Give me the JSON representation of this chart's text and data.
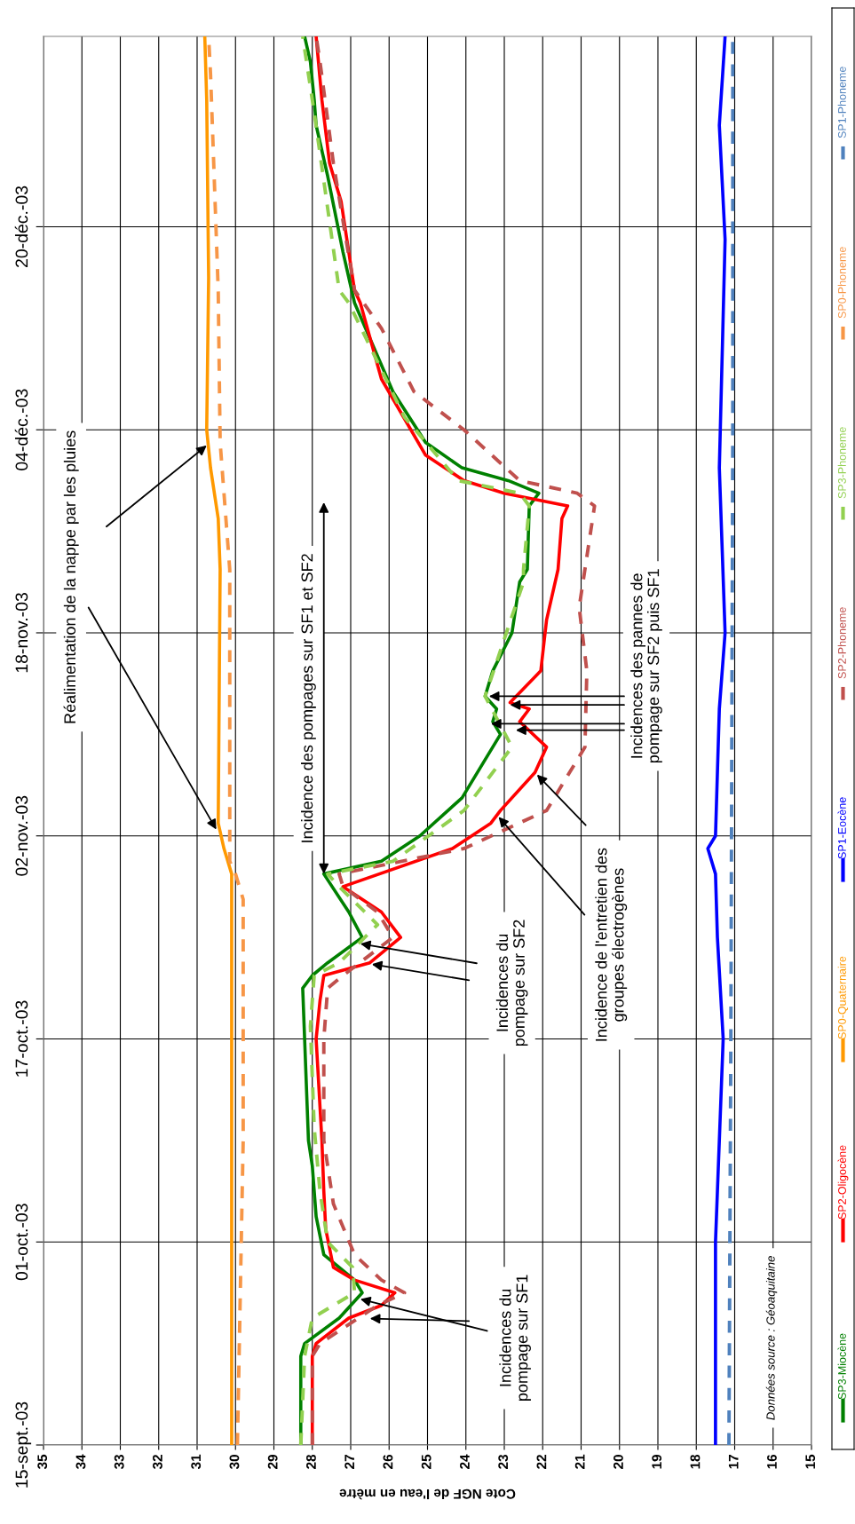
{
  "chart_data": {
    "type": "line",
    "orientation": "horizontal",
    "xlabel": "Cote NGF de l'eau en mètre",
    "ylim": [
      "2003-09-15",
      "2004-01-04"
    ],
    "yticks": [
      {
        "value": "2003-09-15",
        "label": "15-sept.-03"
      },
      {
        "value": "2003-10-01",
        "label": "01-oct.-03"
      },
      {
        "value": "2003-10-17",
        "label": "17-oct.-03"
      },
      {
        "value": "2003-11-02",
        "label": "02-nov.-03"
      },
      {
        "value": "2003-11-18",
        "label": "18-nov.-03"
      },
      {
        "value": "2003-12-04",
        "label": "04-déc.-03"
      },
      {
        "value": "2003-12-20",
        "label": "20-déc.-03"
      }
    ],
    "xlim": [
      35,
      15
    ],
    "xticks": [
      15,
      16,
      17,
      18,
      19,
      20,
      21,
      22,
      23,
      24,
      25,
      26,
      27,
      28,
      29,
      30,
      31,
      32,
      33,
      34,
      35
    ],
    "grid": true,
    "legend": "right",
    "series": [
      {
        "name": "SP3-Miocène",
        "color": "#008000",
        "line_style": "solid",
        "x": [
          "2003-09-15",
          "2003-09-22",
          "2003-09-23",
          "2003-09-25",
          "2003-09-27",
          "2003-09-28",
          "2003-09-29",
          "2003-09-30",
          "2003-10-03",
          "2003-10-07",
          "2003-10-09",
          "2003-10-17",
          "2003-10-21",
          "2003-10-22",
          "2003-10-23",
          "2003-10-25",
          "2003-10-27",
          "2003-10-30",
          "2003-10-31",
          "2003-11-02",
          "2003-11-05",
          "2003-11-09",
          "2003-11-10",
          "2003-11-11",
          "2003-11-12",
          "2003-11-13",
          "2003-11-15",
          "2003-11-18",
          "2003-11-22",
          "2003-11-23",
          "2003-11-28",
          "2003-11-29",
          "2003-11-30",
          "2003-12-01",
          "2003-12-03",
          "2003-12-07",
          "2003-12-14",
          "2003-12-18",
          "2003-12-24",
          "2003-12-28",
          "2003-12-30",
          "2004-01-02",
          "2004-01-04"
        ],
        "values": [
          28.3,
          28.3,
          28.2,
          27.3,
          26.7,
          26.9,
          27.3,
          27.7,
          27.9,
          28.0,
          28.1,
          28.2,
          28.25,
          28.0,
          27.6,
          26.7,
          27.05,
          27.7,
          26.2,
          25.2,
          24.1,
          23.3,
          23.1,
          23.3,
          23.2,
          23.5,
          23.3,
          22.8,
          22.6,
          22.4,
          22.35,
          22.1,
          22.9,
          24.1,
          25.05,
          25.9,
          26.9,
          27.2,
          27.6,
          27.9,
          27.95,
          28.05,
          28.2
        ]
      },
      {
        "name": "SP2-Oligocène",
        "color": "#ff0000",
        "line_style": "solid",
        "x": [
          "2003-09-15",
          "2003-09-22",
          "2003-09-23",
          "2003-09-25",
          "2003-09-26",
          "2003-09-27",
          "2003-09-28",
          "2003-09-29",
          "2003-10-02",
          "2003-10-05",
          "2003-10-09",
          "2003-10-17",
          "2003-10-20",
          "2003-10-22",
          "2003-10-23",
          "2003-10-25",
          "2003-10-27",
          "2003-10-29",
          "2003-11-01",
          "2003-11-03",
          "2003-11-04",
          "2003-11-07",
          "2003-11-09",
          "2003-11-11",
          "2003-11-12",
          "2003-11-12T12:00",
          "2003-11-15",
          "2003-11-19",
          "2003-11-23",
          "2003-11-27",
          "2003-11-28",
          "2003-11-29",
          "2003-11-30",
          "2003-12-02",
          "2003-12-08",
          "2003-12-14",
          "2003-12-15",
          "2003-12-22",
          "2003-12-25",
          "2003-12-30",
          "2004-01-04"
        ],
        "values": [
          28.0,
          28.0,
          27.9,
          27.05,
          26.2,
          25.85,
          26.9,
          27.45,
          27.65,
          27.7,
          27.75,
          27.9,
          27.8,
          27.7,
          26.5,
          25.7,
          26.2,
          27.2,
          24.35,
          23.35,
          23.1,
          22.2,
          21.9,
          22.6,
          22.35,
          22.85,
          22.05,
          21.9,
          21.6,
          21.5,
          21.35,
          23.0,
          24.05,
          25.05,
          26.2,
          26.75,
          26.9,
          27.25,
          27.55,
          27.75,
          27.9
        ]
      },
      {
        "name": "SP0-Quaternaire",
        "color": "#ff9900",
        "line_style": "solid",
        "x": [
          "2003-09-15",
          "2003-10-30",
          "2003-11-01",
          "2003-11-03",
          "2003-11-23",
          "2003-11-27",
          "2003-12-01",
          "2003-12-04",
          "2003-12-16",
          "2003-12-30",
          "2004-01-04"
        ],
        "values": [
          30.1,
          30.1,
          30.3,
          30.45,
          30.4,
          30.45,
          30.65,
          30.75,
          30.7,
          30.75,
          30.8
        ]
      },
      {
        "name": "SP1-Eocène",
        "color": "#0000ff",
        "line_style": "solid",
        "x": [
          "2003-09-15",
          "2003-10-01",
          "2003-10-17",
          "2003-10-25",
          "2003-10-30",
          "2003-11-01",
          "2003-11-02",
          "2003-11-12",
          "2003-11-18",
          "2003-12-01",
          "2003-12-19",
          "2003-12-28",
          "2004-01-04"
        ],
        "values": [
          17.5,
          17.5,
          17.3,
          17.45,
          17.5,
          17.7,
          17.5,
          17.4,
          17.25,
          17.4,
          17.25,
          17.4,
          17.25
        ]
      },
      {
        "name": "SP2-Phoneme",
        "color": "#c0504d",
        "line_style": "dashed",
        "x": [
          "2003-09-15",
          "2003-09-22",
          "2003-09-23",
          "2003-09-26",
          "2003-09-27",
          "2003-09-28",
          "2003-09-30",
          "2003-10-04",
          "2003-10-09",
          "2003-10-17",
          "2003-10-21",
          "2003-10-22",
          "2003-10-25",
          "2003-10-27",
          "2003-10-29",
          "2003-10-30",
          "2003-11-01",
          "2003-11-04",
          "2003-11-09",
          "2003-11-15",
          "2003-11-20",
          "2003-11-28",
          "2003-11-29",
          "2003-11-30",
          "2003-12-04",
          "2003-12-07",
          "2003-12-12",
          "2003-12-15",
          "2003-12-25",
          "2004-01-02",
          "2004-01-04"
        ],
        "values": [
          28.0,
          28.0,
          27.8,
          26.3,
          25.6,
          26.2,
          26.9,
          27.45,
          27.7,
          27.7,
          27.6,
          27.2,
          25.9,
          26.3,
          27.2,
          27.3,
          24.05,
          21.9,
          20.9,
          20.85,
          21.05,
          20.65,
          21.1,
          22.6,
          24.05,
          25.35,
          26.2,
          26.9,
          27.45,
          27.8,
          27.9
        ]
      },
      {
        "name": "SP3-Phoneme",
        "color": "#92d050",
        "line_style": "dashed",
        "x": [
          "2003-09-15",
          "2003-09-22",
          "2003-09-25",
          "2003-09-27",
          "2003-09-29",
          "2003-10-01",
          "2003-10-05",
          "2003-10-10",
          "2003-10-18",
          "2003-10-22",
          "2003-10-23",
          "2003-10-26",
          "2003-10-29",
          "2003-10-30",
          "2003-10-31",
          "2003-11-04",
          "2003-11-09",
          "2003-11-13",
          "2003-11-22",
          "2003-11-23",
          "2003-11-28",
          "2003-11-29",
          "2003-11-30",
          "2003-12-05",
          "2003-12-14",
          "2003-12-15",
          "2003-12-29",
          "2004-01-04"
        ],
        "values": [
          28.3,
          28.2,
          28.0,
          26.9,
          26.95,
          27.6,
          27.8,
          27.95,
          28.05,
          27.95,
          27.3,
          26.3,
          27.3,
          27.6,
          25.9,
          24.05,
          22.8,
          23.5,
          22.5,
          22.5,
          22.35,
          22.6,
          24.2,
          25.6,
          27.05,
          27.3,
          27.95,
          28.25
        ]
      },
      {
        "name": "SP0-Phoneme",
        "color": "#f79646",
        "line_style": "dashed",
        "x": [
          "2003-09-15",
          "2003-10-09",
          "2003-10-28",
          "2003-10-30",
          "2003-10-31",
          "2003-11-23",
          "2003-12-03",
          "2003-12-15",
          "2004-01-01",
          "2004-01-04"
        ],
        "values": [
          29.95,
          29.8,
          29.8,
          30.0,
          30.15,
          30.15,
          30.4,
          30.45,
          30.65,
          30.7
        ]
      },
      {
        "name": "SP1-Phoneme",
        "color": "#4f81bd",
        "line_style": "dashed",
        "x": [
          "2003-09-15",
          "2003-10-17",
          "2003-12-04",
          "2004-01-04"
        ],
        "values": [
          17.15,
          17.1,
          17.05,
          17.05
        ]
      }
    ],
    "annotations": [
      {
        "text": "Réalimentation de la nappe par les pluies",
        "y": "2003-11-02T12:00",
        "x": 30.5
      },
      {
        "text": "Incidence des pompages sur SF1 et SF2",
        "y": "2003-10-30",
        "x": 27.7
      },
      {
        "text": "Incidences du\npompage sur SF2",
        "y": "2003-10-24T12:00",
        "x": 26.75
      },
      {
        "text": "Incidence de l'entretien des\ngroupes électrogènes",
        "y": "2003-11-03T12:00",
        "x": 23.15
      },
      {
        "text": "Incidences des pannes de\npompage sur SF2 puis SF1",
        "y": "2003-11-13",
        "x": 23.4
      },
      {
        "text": "Incidences du\npompage sur SF1",
        "y": "2003-09-26T12:00",
        "x": 26.75
      },
      "Données source : Géoaquitaine"
    ]
  }
}
